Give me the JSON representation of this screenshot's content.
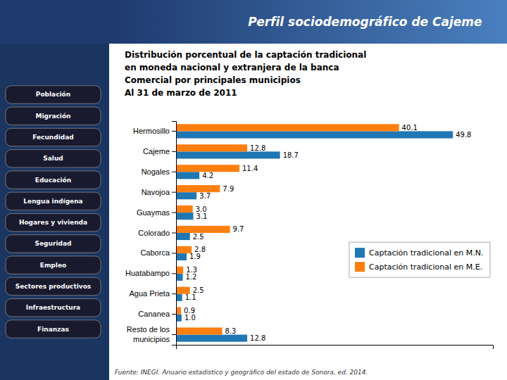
{
  "chart_data": {
    "type": "bar",
    "orientation": "horizontal",
    "title": "Perfil sociodemográfico de Cajeme",
    "subtitle": "Distribución porcentual de la captación tradicional\nen moneda nacional y extranjera de la banca\nComercial por principales municipios\nAl 31 de marzo de 2011",
    "categories": [
      "Hermosillo",
      "Cajeme",
      "Nogales",
      "Navojoa",
      "Guaymas",
      "Colorado",
      "Caborca",
      "Huatabampo",
      "Agua Prieta",
      "Cananea",
      "Resto de los\nmunicipios"
    ],
    "series": [
      {
        "name": "Captación tradicional en M.N.",
        "values": [
          49.8,
          18.7,
          4.2,
          3.7,
          3.1,
          2.5,
          1.9,
          1.2,
          1.1,
          1.0,
          12.8
        ],
        "value_labels": [
          "49.8",
          "18.7",
          "4.2",
          "3.7",
          "3.1",
          "2.5",
          "1.9",
          "1.2",
          "1.1",
          "1.0",
          "12.8"
        ]
      },
      {
        "name": "Captación tradicional en M.E.",
        "values": [
          40.1,
          12.8,
          11.4,
          7.9,
          3.0,
          9.7,
          2.8,
          1.3,
          2.5,
          0.9,
          8.3
        ],
        "value_labels": [
          "40.1",
          "12.8",
          "11.4",
          "7.9",
          "3.0",
          "9.7",
          "2.8",
          "1.3",
          "2.5",
          "0.9",
          "8.3"
        ]
      }
    ],
    "xlim": [
      0,
      57
    ],
    "tick_labels": "y",
    "data_labels": true,
    "legend": "right",
    "grid": false,
    "annotations": [
      "Fuente: INEGI. Anuario estadístico y geográfico del estado de Sonora, ed. 2014.",
      "Población",
      "Migración",
      "Fecundidad",
      "Salud",
      "Educación",
      "Lengua indígena",
      "Hogares y vivienda",
      "Seguridad",
      "Empleo",
      "Sectores productivos",
      "Infraestructura",
      "Finanzas"
    ]
  }
}
